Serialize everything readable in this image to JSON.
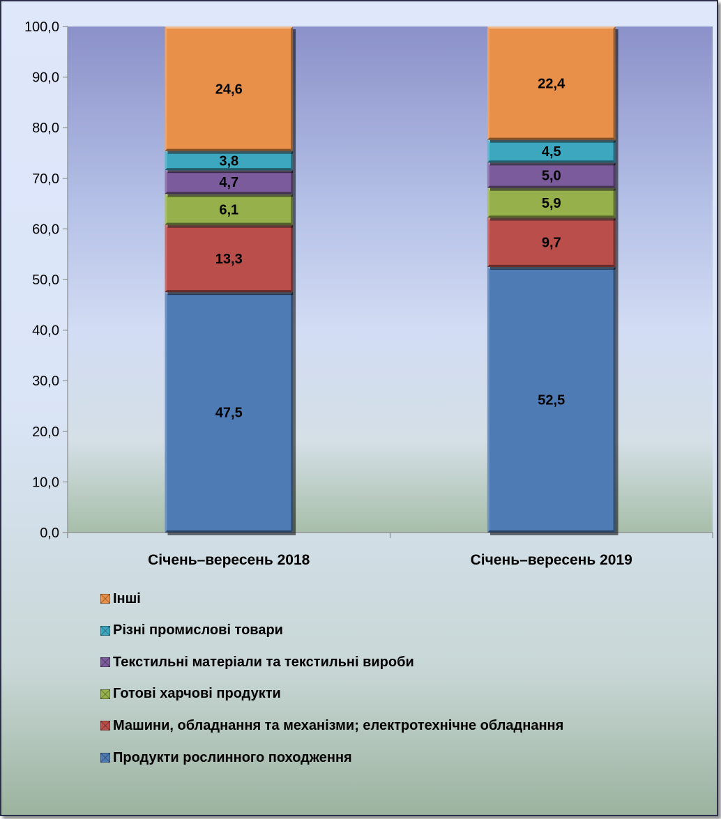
{
  "chart_data": {
    "type": "bar",
    "stacked": true,
    "categories": [
      "Січень–вересень 2018",
      "Січень–вересень 2019"
    ],
    "series": [
      {
        "name": "Продукти рослинного походження",
        "color": "#4f7bb5",
        "values": [
          47.5,
          52.5
        ]
      },
      {
        "name": "Машини, обладнання та механізми; електротехнічне обладнання",
        "color": "#b94e4a",
        "values": [
          13.3,
          9.7
        ]
      },
      {
        "name": "Готові харчові продукти",
        "color": "#96b14c",
        "values": [
          6.1,
          5.9
        ]
      },
      {
        "name": "Текстильні матеріали та текстильні вироби",
        "color": "#7b5b9b",
        "values": [
          4.7,
          5.0
        ]
      },
      {
        "name": "Різні промислові товари",
        "color": "#3ea7c0",
        "values": [
          3.8,
          4.5
        ]
      },
      {
        "name": "Інші",
        "color": "#e8904a",
        "values": [
          24.6,
          22.4
        ]
      }
    ],
    "data_labels": [
      [
        "47,5",
        "13,3",
        "6,1",
        "4,7",
        "3,8",
        "24,6"
      ],
      [
        "52,5",
        "9,7",
        "5,9",
        "5,0",
        "4,5",
        "22,4"
      ]
    ],
    "ylim": [
      0,
      100
    ],
    "yticks": [
      "0,0",
      "10,0",
      "20,0",
      "30,0",
      "40,0",
      "50,0",
      "60,0",
      "70,0",
      "80,0",
      "90,0",
      "100,0"
    ],
    "title": "",
    "xlabel": "",
    "ylabel": "",
    "legend_position": "bottom",
    "legend_order": [
      5,
      4,
      3,
      2,
      1,
      0
    ]
  }
}
